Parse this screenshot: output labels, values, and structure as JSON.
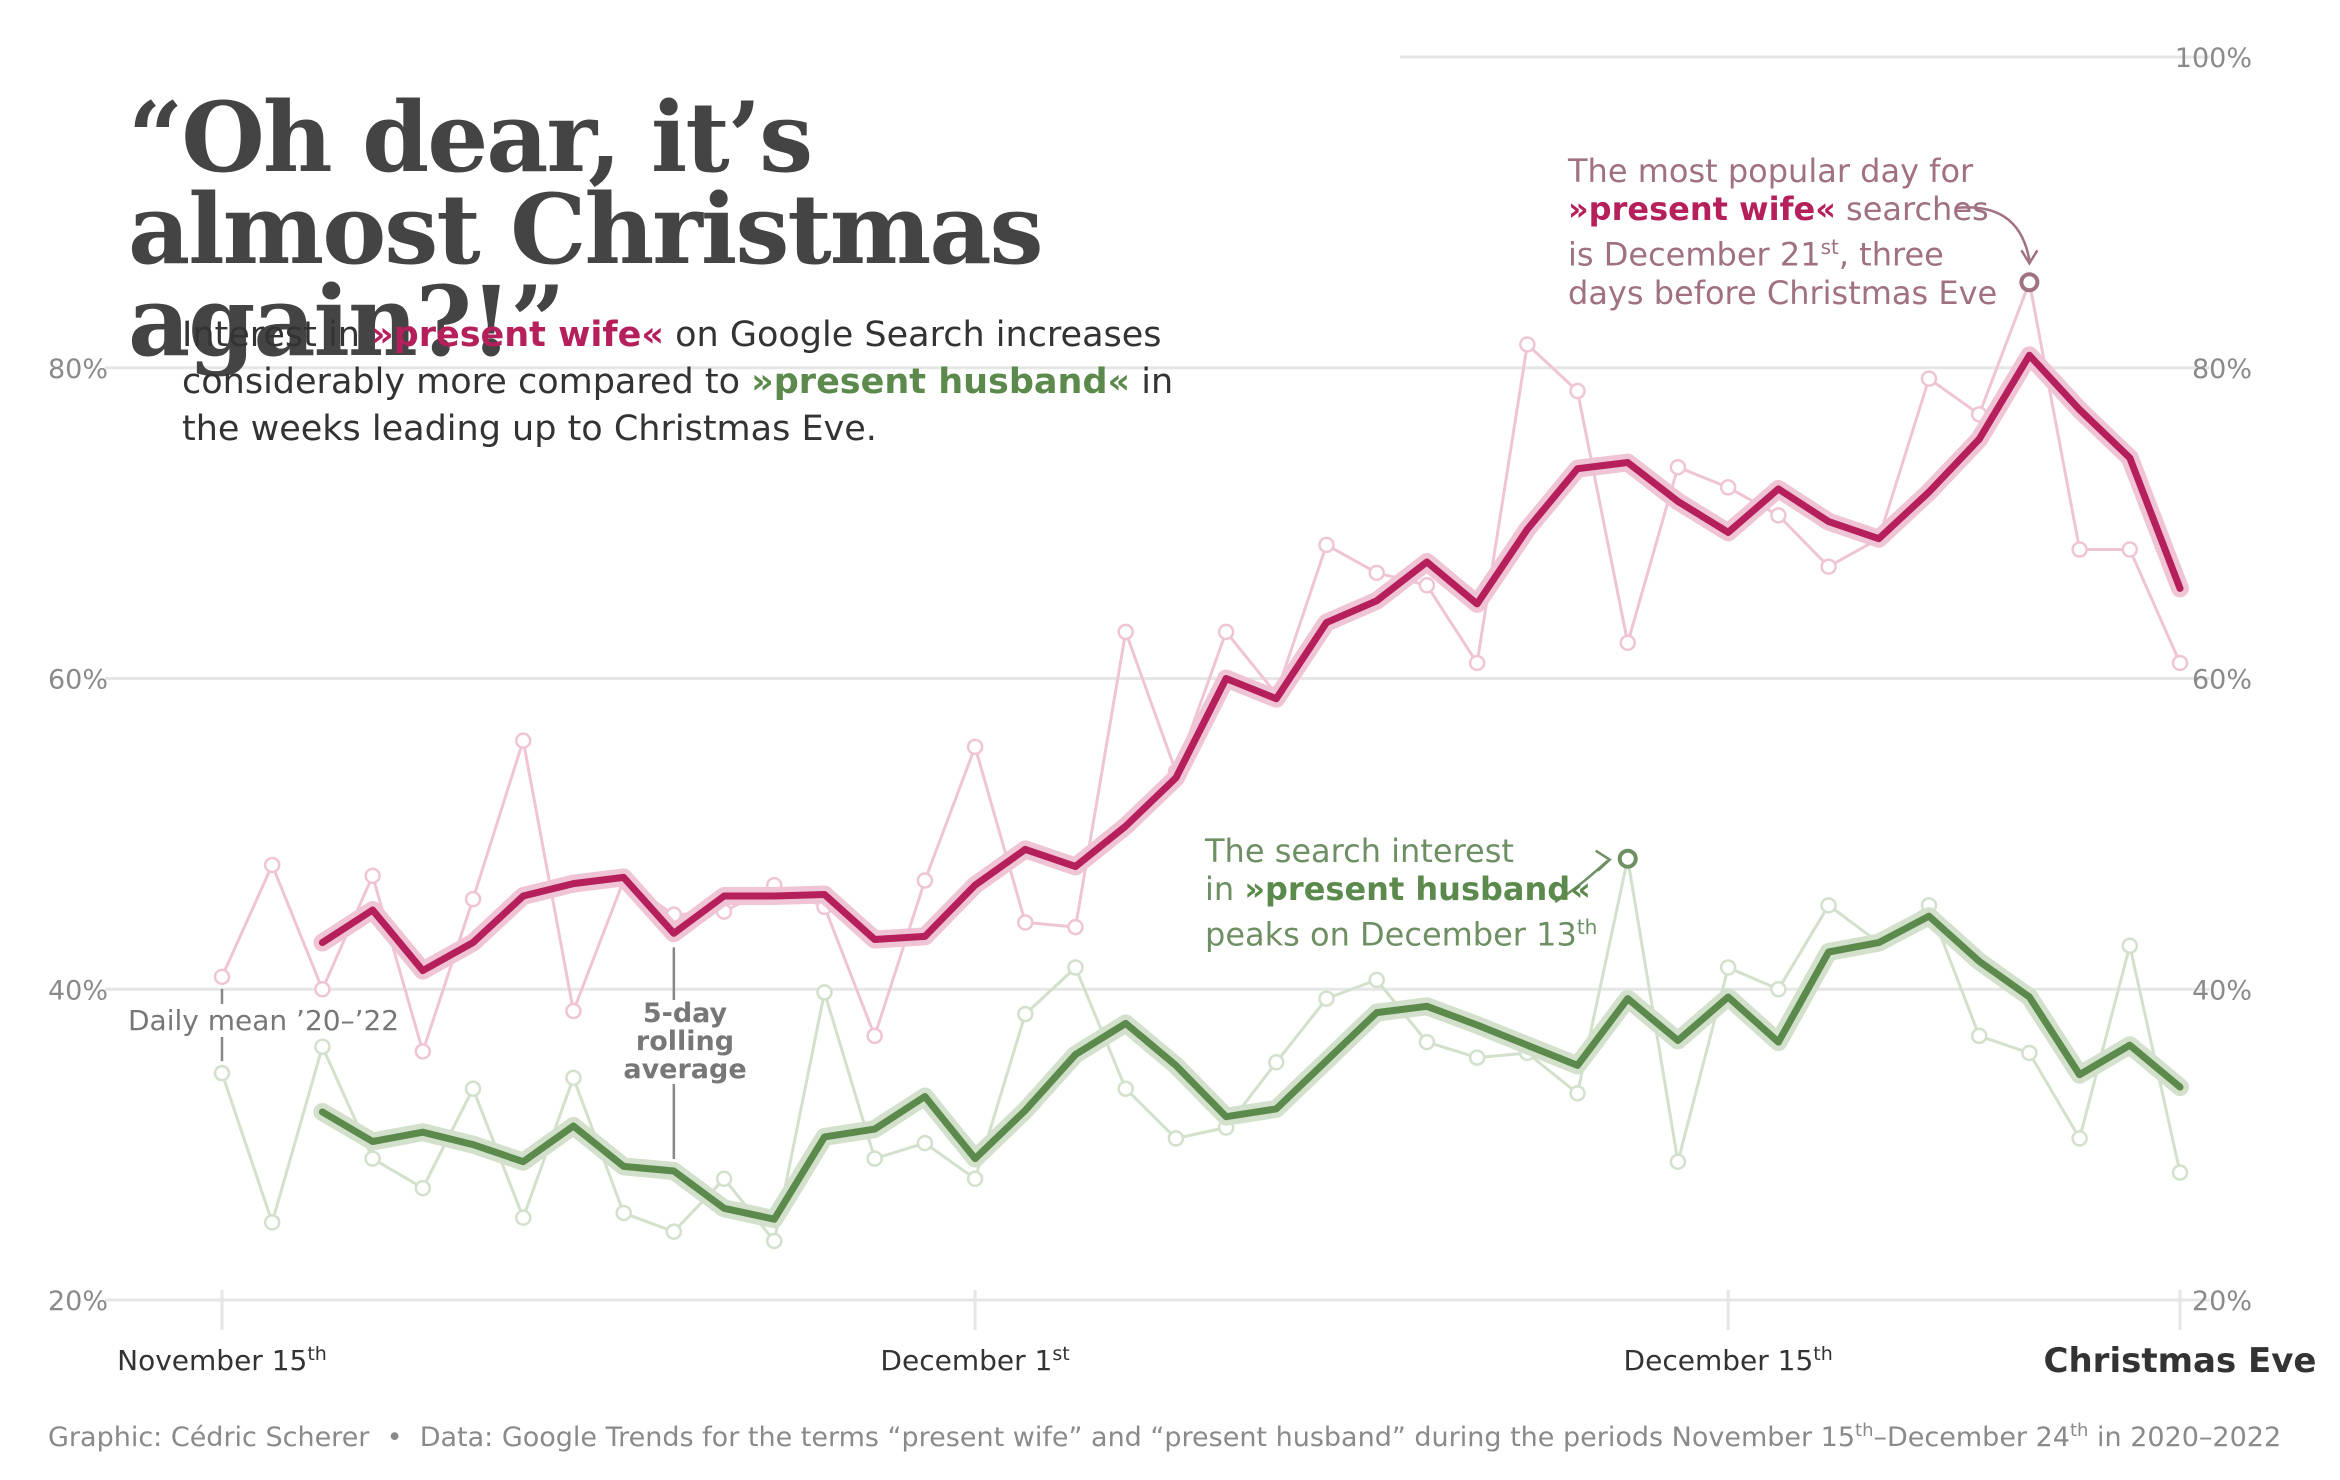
{
  "title": "“Oh dear, it’s almost Christmas again?!”",
  "subtitle": {
    "p1": "Interest in ",
    "wife_term": "»present wife«",
    "p2": " on Google Search increases considerably more compared to ",
    "husband_term": "»present husband«",
    "p3": " in the weeks leading up to Christmas Eve."
  },
  "annotations": {
    "wife": {
      "l1": "The most popular day for",
      "term": "»present wife«",
      "l2": " searches",
      "l3": "is December 21",
      "sup": "st",
      "l3b": ", three",
      "l4": "days before Christmas Eve"
    },
    "husband": {
      "l1": "The search interest",
      "pre": "in ",
      "term": "»present husband«",
      "l3": "peaks on December 13",
      "sup": "th"
    },
    "daily": "Daily mean ’20–’22",
    "rolling": [
      "5-day",
      "rolling",
      "average"
    ]
  },
  "caption": {
    "author": "Graphic: Cédric Scherer",
    "bullet": "•",
    "d1": "Data: Google Trends for the terms “present wife” and “present husband” during the periods November 15",
    "s1": "th",
    "d2": "–December 24",
    "s2": "th",
    "d3": " in 2020–2022"
  },
  "colors": {
    "wife": "#b51f5c",
    "wife_light": "#efc5d6",
    "husband": "#5b8a4c",
    "husband_light": "#d2e0cc",
    "grid": "#e6e6e6"
  },
  "chart_data": {
    "type": "line",
    "x_labels": [
      "November 15th",
      "December 1st",
      "December 15th",
      "Christmas Eve"
    ],
    "x_ticks": [
      {
        "day": 0,
        "text": "November 15",
        "sup": "th",
        "bold": false
      },
      {
        "day": 15,
        "text": "December 1",
        "sup": "st",
        "bold": false
      },
      {
        "day": 30,
        "text": "December 15",
        "sup": "th",
        "bold": false
      },
      {
        "day": 39,
        "text": "Christmas Eve",
        "sup": "",
        "bold": true
      }
    ],
    "y_ticks": [
      20,
      40,
      60,
      80,
      100
    ],
    "y_tick_labels": [
      "20%",
      "40%",
      "60%",
      "80%",
      "100%"
    ],
    "ylim": [
      20,
      100
    ],
    "series": [
      {
        "key": "wife_daily",
        "values": [
          40.8,
          48.0,
          40.0,
          47.3,
          36.0,
          45.8,
          56.0,
          38.6,
          47.0,
          44.8,
          45.0,
          46.7,
          45.3,
          37.0,
          47.0,
          55.6,
          44.3,
          44.0,
          63.0,
          54.0,
          63.0,
          59.0,
          68.6,
          66.8,
          66.0,
          61.0,
          81.5,
          78.5,
          62.3,
          73.6,
          72.3,
          70.5,
          67.2,
          69.0,
          79.3,
          77.0,
          85.5,
          68.3,
          68.3,
          61.0
        ]
      },
      {
        "key": "wife_rolling",
        "values": [
          null,
          null,
          43.0,
          45.1,
          41.2,
          43.0,
          46.0,
          46.8,
          47.2,
          43.6,
          46.0,
          46.0,
          46.1,
          43.2,
          43.4,
          46.7,
          49.0,
          47.9,
          50.5,
          53.6,
          60.0,
          58.7,
          63.6,
          65.0,
          67.5,
          64.8,
          69.6,
          73.5,
          73.9,
          71.4,
          69.4,
          72.2,
          70.1,
          69.0,
          72.0,
          75.4,
          80.8,
          77.3,
          74.2,
          65.8
        ]
      },
      {
        "key": "husband_daily",
        "values": [
          34.6,
          25.0,
          36.3,
          29.1,
          27.2,
          33.6,
          25.3,
          34.3,
          25.6,
          24.4,
          27.8,
          23.8,
          39.8,
          29.1,
          30.1,
          27.8,
          38.4,
          41.4,
          33.6,
          30.4,
          31.1,
          35.3,
          39.4,
          40.6,
          36.6,
          35.6,
          35.9,
          33.3,
          48.4,
          28.9,
          41.4,
          40.0,
          45.4,
          43.0,
          45.4,
          37.0,
          35.9,
          30.4,
          42.8,
          28.2
        ]
      },
      {
        "key": "husband_rolling",
        "values": [
          null,
          null,
          32.1,
          30.2,
          30.8,
          30.0,
          28.9,
          31.2,
          28.6,
          28.3,
          25.9,
          25.2,
          30.5,
          31.0,
          33.1,
          29.1,
          32.2,
          35.8,
          37.8,
          35.1,
          31.8,
          32.3,
          35.4,
          38.5,
          38.9,
          37.7,
          36.4,
          35.1,
          39.4,
          36.7,
          39.5,
          36.6,
          42.4,
          43.0,
          44.7,
          41.8,
          39.5,
          34.5,
          36.4,
          33.7
        ]
      }
    ],
    "highlight_points": [
      {
        "series": "wife_daily",
        "day": 36
      },
      {
        "series": "husband_daily",
        "day": 28
      }
    ]
  }
}
